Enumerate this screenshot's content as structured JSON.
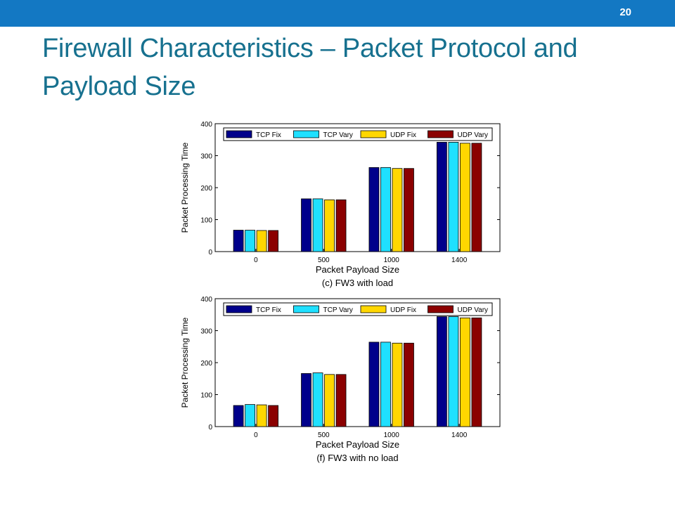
{
  "slide": {
    "number": "20",
    "title": "Firewall Characteristics – Packet Protocol and Payload Size"
  },
  "colors": {
    "header_bar": "#1378c3",
    "title_text": "#17718f",
    "series": [
      "#00008b",
      "#1fe0ff",
      "#ffd700",
      "#8b0000"
    ]
  },
  "chart_data": [
    {
      "type": "bar",
      "caption": "(c) FW3 with load",
      "xlabel": "Packet Payload Size",
      "ylabel": "Packet Processing Time",
      "categories": [
        "0",
        "500",
        "1000",
        "1400"
      ],
      "ylim": [
        0,
        400
      ],
      "yticks": [
        0,
        100,
        200,
        300,
        400
      ],
      "legend_position": "top",
      "series": [
        {
          "name": "TCP Fix",
          "values": [
            67,
            165,
            263,
            342
          ]
        },
        {
          "name": "TCP Vary",
          "values": [
            67,
            165,
            263,
            342
          ]
        },
        {
          "name": "UDP Fix",
          "values": [
            66,
            162,
            260,
            339
          ]
        },
        {
          "name": "UDP Vary",
          "values": [
            66,
            162,
            260,
            339
          ]
        }
      ]
    },
    {
      "type": "bar",
      "caption": "(f) FW3 with no load",
      "xlabel": "Packet Payload Size",
      "ylabel": "Packet Processing Time",
      "categories": [
        "0",
        "500",
        "1000",
        "1400"
      ],
      "ylim": [
        0,
        400
      ],
      "yticks": [
        0,
        100,
        200,
        300,
        400
      ],
      "legend_position": "top",
      "series": [
        {
          "name": "TCP Fix",
          "values": [
            66,
            166,
            264,
            344
          ]
        },
        {
          "name": "TCP Vary",
          "values": [
            69,
            168,
            264,
            344
          ]
        },
        {
          "name": "UDP Fix",
          "values": [
            68,
            163,
            261,
            340
          ]
        },
        {
          "name": "UDP Vary",
          "values": [
            66,
            163,
            261,
            340
          ]
        }
      ]
    }
  ]
}
